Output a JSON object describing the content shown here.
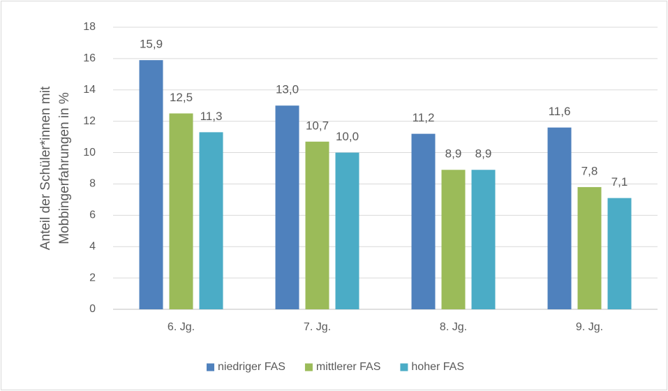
{
  "chart_data": {
    "type": "bar",
    "ylabel": [
      "Anteil der Schüler*innen mit",
      "Mobbingerfahrungen in %"
    ],
    "categories": [
      "6. Jg.",
      "7. Jg.",
      "8. Jg.",
      "9. Jg."
    ],
    "series": [
      {
        "name": "niedriger FAS",
        "color": "#4f81bd",
        "values": [
          15.9,
          13.0,
          11.2,
          11.6
        ],
        "value_labels": [
          "15,9",
          "13,0",
          "11,2",
          "11,6"
        ]
      },
      {
        "name": "mittlerer FAS",
        "color": "#9bbb59",
        "values": [
          12.5,
          10.7,
          8.9,
          7.8
        ],
        "value_labels": [
          "12,5",
          "10,7",
          "8,9",
          "7,8"
        ]
      },
      {
        "name": "hoher FAS",
        "color": "#4bacc6",
        "values": [
          11.3,
          10.0,
          8.9,
          7.1
        ],
        "value_labels": [
          "11,3",
          "10,0",
          "8,9",
          "7,1"
        ]
      }
    ],
    "ylim": [
      0,
      18
    ],
    "yticks": [
      0,
      2,
      4,
      6,
      8,
      10,
      12,
      14,
      16,
      18
    ],
    "grid": true,
    "legend": "bottom"
  }
}
